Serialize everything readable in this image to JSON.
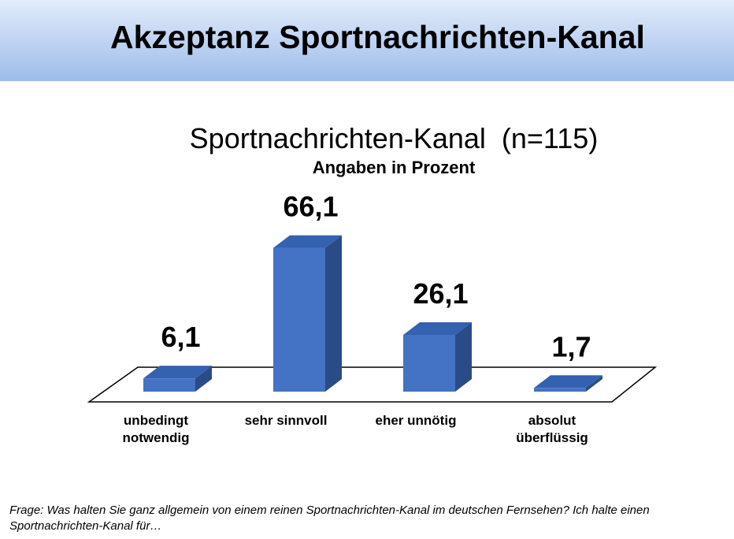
{
  "slide": {
    "title": "Akzeptanz Sportnachrichten-Kanal",
    "question": "Frage: Was halten Sie ganz allgemein von einem reinen Sportnachrichten-Kanal im deutschen Fernsehen? Ich halte einen Sportnachrichten-Kanal für…"
  },
  "chart_data": {
    "type": "bar",
    "title": "Sportnachrichten-Kanal  (n=115)",
    "subtitle": "Angaben in Prozent",
    "categories": [
      [
        "unbedingt",
        "notwendig"
      ],
      [
        "sehr sinnvoll"
      ],
      [
        "eher unnötig"
      ],
      [
        "absolut",
        "überflüssig"
      ]
    ],
    "values": [
      6.1,
      66.1,
      26.1,
      1.7
    ],
    "value_labels": [
      "6,1",
      "66,1",
      "26,1",
      "1,7"
    ],
    "ylim": [
      0,
      70
    ],
    "grid": false,
    "legend": "none",
    "style": "3d-column",
    "colors": {
      "front": "#4472c4",
      "side": "#2a4b86",
      "top": "#3461b0",
      "floor_stroke": "#000000"
    }
  }
}
